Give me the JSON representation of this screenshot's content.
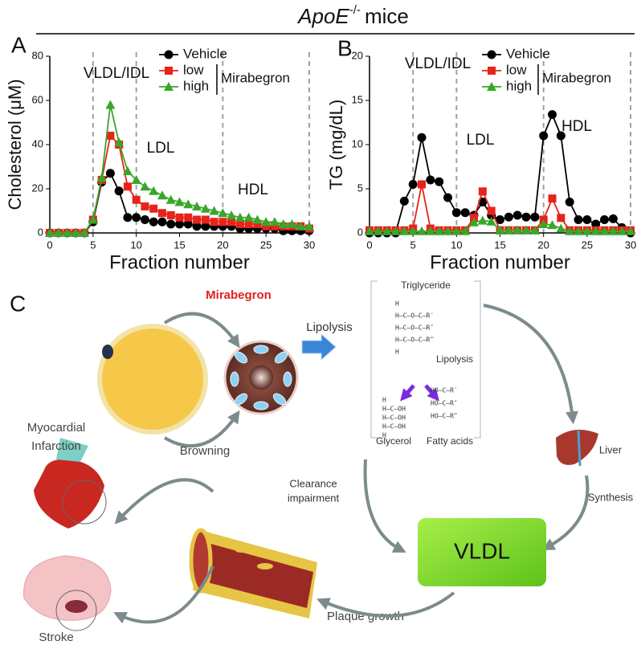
{
  "figure_title": {
    "gene": "ApoE",
    "superscript": "-/-",
    "suffix": "mice"
  },
  "chart_data": [
    {
      "type": "line",
      "panel": "A",
      "ylabel": "Cholesterol (μM)",
      "xlabel": "Fraction number",
      "x": [
        0,
        1,
        2,
        3,
        4,
        5,
        6,
        7,
        8,
        9,
        10,
        11,
        12,
        13,
        14,
        15,
        16,
        17,
        18,
        19,
        20,
        21,
        22,
        23,
        24,
        25,
        26,
        27,
        28,
        29,
        30
      ],
      "xlim": [
        0,
        30
      ],
      "xticks": [
        0,
        5,
        10,
        15,
        20,
        25,
        30
      ],
      "ylim": [
        0,
        80
      ],
      "yticks": [
        0,
        20,
        40,
        60,
        80
      ],
      "dividers": [
        5,
        10,
        20,
        30
      ],
      "divider_color": "#9aa3a3",
      "region_labels": [
        "VLDL/IDL",
        "LDL",
        "HDL"
      ],
      "legend_group": "Mirabegron",
      "series": [
        {
          "name": "Vehicle",
          "color": "#000000",
          "marker": "circle",
          "values": [
            0,
            0,
            0,
            0,
            0,
            5,
            23,
            27,
            19,
            7,
            7,
            6,
            5,
            5,
            4,
            4,
            4,
            3,
            3,
            3,
            3,
            3,
            2,
            2,
            2,
            2,
            2,
            1,
            1,
            1,
            1
          ]
        },
        {
          "name": "low",
          "color": "#e8231a",
          "marker": "square",
          "values": [
            0,
            0,
            0,
            0,
            0,
            6,
            24,
            44,
            40,
            21,
            15,
            12,
            11,
            9,
            8,
            7,
            7,
            6,
            6,
            5,
            5,
            5,
            4,
            4,
            4,
            3,
            3,
            3,
            3,
            3,
            2
          ]
        },
        {
          "name": "high",
          "color": "#3aa62a",
          "marker": "triangle",
          "values": [
            0,
            0,
            0,
            0,
            0,
            6,
            25,
            58,
            41,
            28,
            24,
            21,
            19,
            17,
            15,
            14,
            13,
            12,
            11,
            10,
            9,
            8,
            7,
            7,
            6,
            5,
            5,
            4,
            4,
            3,
            3
          ]
        }
      ]
    },
    {
      "type": "line",
      "panel": "B",
      "ylabel": "TG (mg/dL)",
      "xlabel": "Fraction number",
      "x": [
        0,
        1,
        2,
        3,
        4,
        5,
        6,
        7,
        8,
        9,
        10,
        11,
        12,
        13,
        14,
        15,
        16,
        17,
        18,
        19,
        20,
        21,
        22,
        23,
        24,
        25,
        26,
        27,
        28,
        29,
        30
      ],
      "xlim": [
        0,
        30
      ],
      "xticks": [
        0,
        5,
        10,
        15,
        20,
        25,
        30
      ],
      "ylim": [
        0,
        20
      ],
      "yticks": [
        0,
        5,
        10,
        15,
        20
      ],
      "dividers": [
        5,
        10,
        20,
        30
      ],
      "divider_color": "#9aa3a3",
      "region_labels": [
        "VLDL/IDL",
        "LDL",
        "HDL"
      ],
      "legend_group": "Mirabegron",
      "series": [
        {
          "name": "Vehicle",
          "color": "#000000",
          "marker": "circle",
          "values": [
            0,
            0,
            0,
            0,
            3.6,
            5.5,
            10.8,
            6,
            5.8,
            4,
            2.3,
            2.3,
            2,
            3.5,
            2,
            1.5,
            1.8,
            2,
            1.8,
            1.8,
            11,
            13.4,
            11,
            3.5,
            1.5,
            1.5,
            1,
            1.5,
            1.6,
            0.6,
            0
          ]
        },
        {
          "name": "low",
          "color": "#e8231a",
          "marker": "square",
          "values": [
            0.3,
            0.3,
            0.3,
            0.3,
            0.3,
            0.5,
            5.5,
            0.5,
            0.3,
            0.3,
            0.3,
            0.3,
            1.7,
            4.7,
            2.5,
            0.3,
            0.3,
            0.3,
            0.3,
            0.3,
            1.5,
            3.9,
            1.7,
            0.3,
            0.3,
            0.3,
            0.3,
            0.3,
            0.3,
            0.3,
            0.3
          ]
        },
        {
          "name": "high",
          "color": "#3aa62a",
          "marker": "triangle",
          "values": [
            0.2,
            0.2,
            0.2,
            0.2,
            0.2,
            0.2,
            0.2,
            0.2,
            0.2,
            0.2,
            0.2,
            0.2,
            1.2,
            1.4,
            1.3,
            0.3,
            0.3,
            0.3,
            0.3,
            0.3,
            1,
            0.9,
            0.5,
            0.2,
            0.2,
            0.2,
            0.2,
            0.2,
            0.2,
            0.2,
            0.2
          ]
        }
      ]
    }
  ],
  "diagram": {
    "panel": "C",
    "drug": "Mirabegron",
    "lipolysis": "Lipolysis",
    "browning": "Browning",
    "triglyceride": {
      "title": "Triglyceride",
      "lines": [
        "H",
        "H—C—O—C—R′",
        "H—C—O—C—R″",
        "H—C—O—C—R‴",
        "H"
      ]
    },
    "enzyme_step": "Lipolysis",
    "glycerol": {
      "title": "Glycerol",
      "lines": [
        "H",
        "H—C—OH",
        "H—C—OH",
        "H—C—OH",
        "H"
      ]
    },
    "fatty_acids": {
      "title": "Fatty acids",
      "lines": [
        "HO—C—R′",
        "HO—C—R″",
        "HO—C—R‴"
      ]
    },
    "liver": "Liver",
    "synthesis": "Synthesis",
    "vldl": "VLDL",
    "clearance": [
      "Clearance",
      "impairment"
    ],
    "plaque": "Plaque growth",
    "mi": [
      "Myocardial",
      "Infarction"
    ],
    "stroke": "Stroke"
  }
}
